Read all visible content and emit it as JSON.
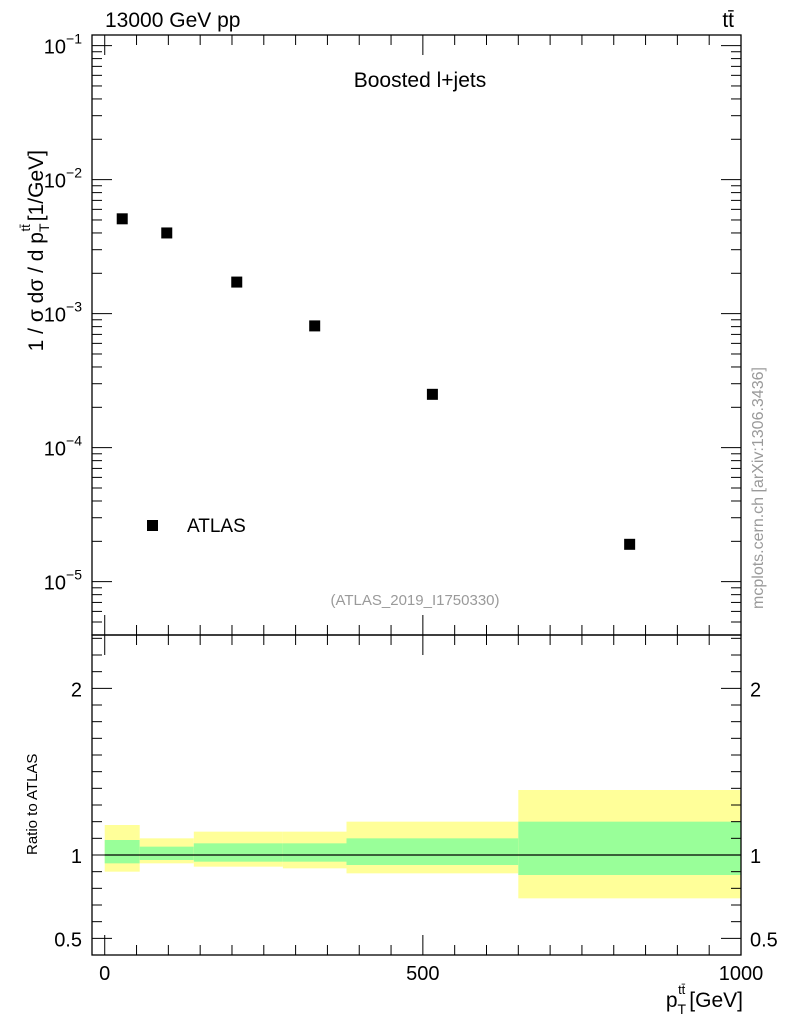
{
  "header": {
    "left": "13000 GeV pp",
    "right": "tt̄"
  },
  "side_label": "mcplots.cern.ch [arXiv:1306.3436]",
  "chart_data": [
    {
      "type": "scatter",
      "title": "Boosted l+jets",
      "analysis_tag": "(ATLAS_2019_I1750330)",
      "ylabel": "1 / σ dσ / d p",
      "ylabel_sub": "T",
      "ylabel_sup": "tt̄",
      "ylabel_unit": "[1/GeV]",
      "yscale": "log",
      "ylim": [
        4e-06,
        0.12
      ],
      "xlim": [
        -20,
        1000
      ],
      "yticks": [
        {
          "value": 1e-05,
          "base": "10",
          "exp": "−5"
        },
        {
          "value": 0.0001,
          "base": "10",
          "exp": "−4"
        },
        {
          "value": 0.001,
          "base": "10",
          "exp": "−3"
        },
        {
          "value": 0.01,
          "base": "10",
          "exp": "−2"
        },
        {
          "value": 0.1,
          "base": "10",
          "exp": "−1"
        }
      ],
      "legend": {
        "position": "bottom-left",
        "label": "ATLAS"
      },
      "series": [
        {
          "name": "ATLAS",
          "points": [
            {
              "x": 27.5,
              "y": 0.0051
            },
            {
              "x": 97.5,
              "y": 0.004
            },
            {
              "x": 207.5,
              "y": 0.00172
            },
            {
              "x": 330,
              "y": 0.00081
            },
            {
              "x": 515,
              "y": 0.00025
            },
            {
              "x": 825,
              "y": 1.9e-05
            }
          ]
        }
      ]
    },
    {
      "type": "bar",
      "ylabel": "Ratio to ATLAS",
      "ylim": [
        0.4,
        2.32
      ],
      "xlim": [
        -20,
        1000
      ],
      "yticks": [
        {
          "value": 0.5,
          "label": "0.5"
        },
        {
          "value": 1,
          "label": "1"
        },
        {
          "value": 2,
          "label": "2"
        }
      ],
      "xticks": [
        {
          "value": 0,
          "label": "0"
        },
        {
          "value": 500,
          "label": "500"
        },
        {
          "value": 1000,
          "label": "1000"
        }
      ],
      "xlabel": "p",
      "xlabel_sub": "T",
      "xlabel_sup": "tt̄",
      "xlabel_unit": "[GeV]",
      "reference_line": 1,
      "bins": [
        {
          "lo": 0,
          "hi": 55,
          "inner": [
            0.95,
            1.09
          ],
          "outer": [
            0.9,
            1.18
          ]
        },
        {
          "lo": 55,
          "hi": 140,
          "inner": [
            0.97,
            1.05
          ],
          "outer": [
            0.95,
            1.1
          ]
        },
        {
          "lo": 140,
          "hi": 280,
          "inner": [
            0.96,
            1.07
          ],
          "outer": [
            0.93,
            1.14
          ]
        },
        {
          "lo": 280,
          "hi": 380,
          "inner": [
            0.96,
            1.07
          ],
          "outer": [
            0.92,
            1.14
          ]
        },
        {
          "lo": 380,
          "hi": 650,
          "inner": [
            0.94,
            1.1
          ],
          "outer": [
            0.89,
            1.2
          ]
        },
        {
          "lo": 650,
          "hi": 1000,
          "inner": [
            0.88,
            1.2
          ],
          "outer": [
            0.74,
            1.39
          ]
        }
      ],
      "colors": {
        "inner": "#99ff99",
        "outer": "#ffff99"
      }
    }
  ]
}
